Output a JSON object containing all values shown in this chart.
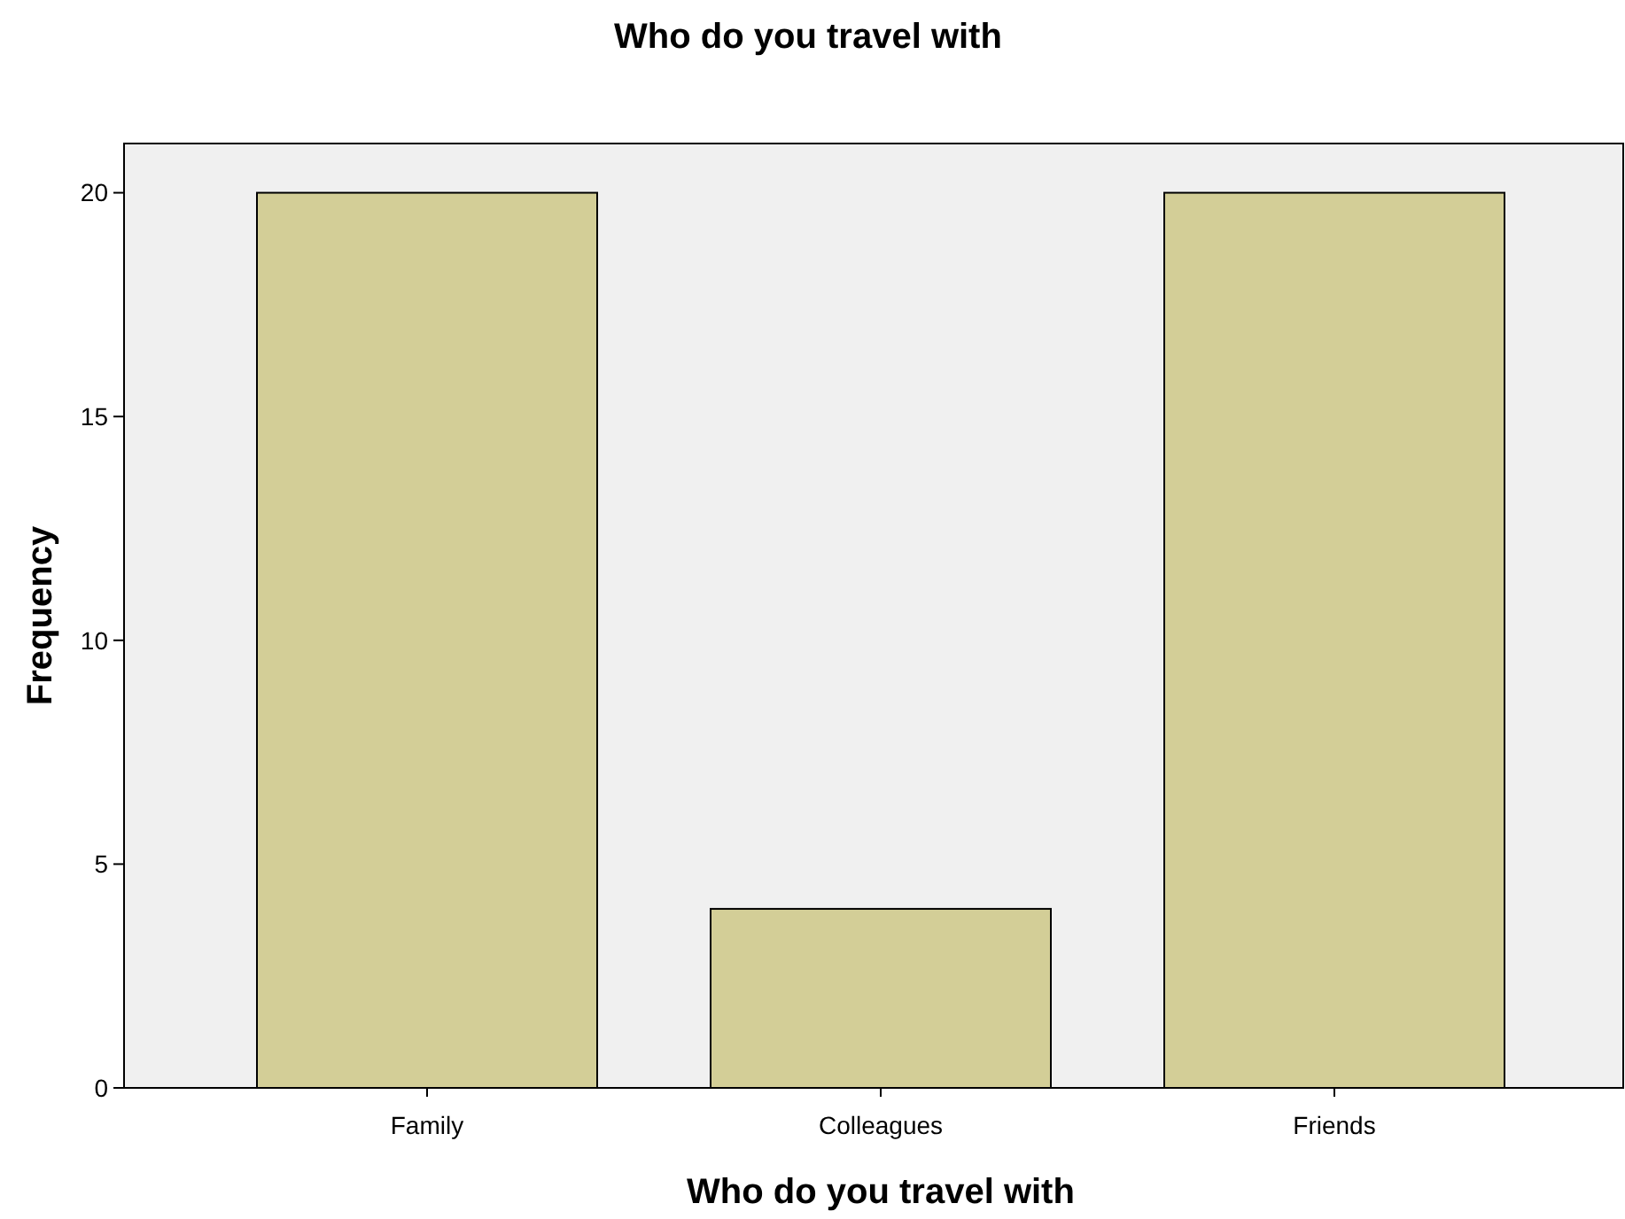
{
  "chart_data": {
    "type": "bar",
    "title": "Who do you travel with",
    "xlabel": "Who do you travel with",
    "ylabel": "Frequency",
    "categories": [
      "Family",
      "Colleagues",
      "Friends"
    ],
    "values": [
      20,
      4,
      20
    ],
    "color": "#d3ce97",
    "ylim": [
      0,
      21.1
    ],
    "yticks": [
      0,
      5,
      10,
      15,
      20
    ],
    "grid": false
  }
}
